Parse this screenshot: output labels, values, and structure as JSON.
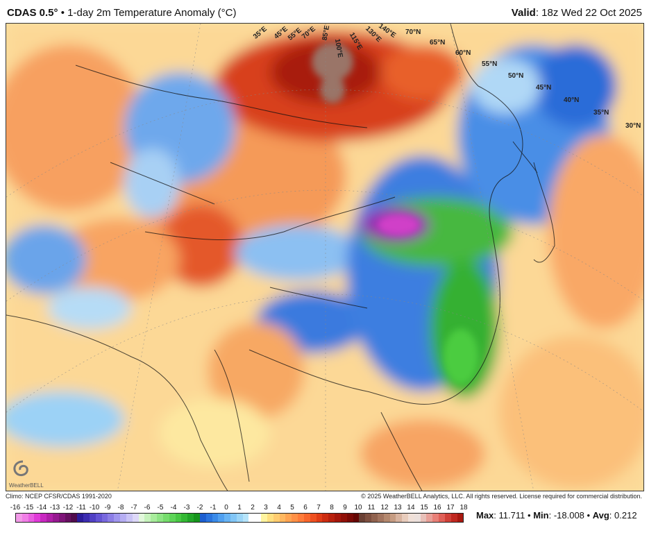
{
  "header": {
    "model": "CDAS 0.5°",
    "separator": "•",
    "product": "1-day 2m Temperature Anomaly (°C)",
    "valid_label": "Valid",
    "valid_time": "18z Wed 22 Oct 2025"
  },
  "map": {
    "lat_labels": [
      "70°N",
      "65°N",
      "60°N",
      "55°N",
      "50°N",
      "45°N",
      "40°N",
      "35°N",
      "30°N"
    ],
    "lon_labels": [
      "35°E",
      "45°E",
      "55°E",
      "70°E",
      "85°E",
      "100°E",
      "115°E",
      "130°E",
      "140°E"
    ],
    "logo_text": "WeatherBELL"
  },
  "footer": {
    "climo": "Climo: NCEP CFSR/CDAS 1991-2020",
    "copyright": "© 2025 WeatherBELL Analytics, LLC. All rights reserved. License required for commercial distribution."
  },
  "colorbar": {
    "tick_labels": [
      "-16",
      "-15",
      "-14",
      "-13",
      "-12",
      "-11",
      "-10",
      "-9",
      "-8",
      "-7",
      "-6",
      "-5",
      "-4",
      "-3",
      "-2",
      "-1",
      "0",
      "1",
      "2",
      "3",
      "4",
      "5",
      "6",
      "7",
      "8",
      "9",
      "10",
      "11",
      "12",
      "13",
      "14",
      "15",
      "16",
      "17",
      "18"
    ],
    "colors": [
      "#f29ae8",
      "#f07ee6",
      "#e85ee0",
      "#e03ad8",
      "#c828c0",
      "#b01ea8",
      "#961890",
      "#7e1478",
      "#661060",
      "#500c4c",
      "#2c1c9a",
      "#3c2cb0",
      "#5040c4",
      "#6454d4",
      "#7868de",
      "#8c7ee6",
      "#a096ee",
      "#b6aef2",
      "#cac4f6",
      "#ddd8f8",
      "#e2f8dc",
      "#c6f2bc",
      "#a8ec9c",
      "#8ee484",
      "#76dc6c",
      "#5ed458",
      "#48c844",
      "#34b834",
      "#22a628",
      "#16941c",
      "#1c5ed0",
      "#2a74de",
      "#3a8ae8",
      "#50a0f0",
      "#68b4f4",
      "#82c6f6",
      "#9cd6f8",
      "#b6e4fa",
      "#ffffff",
      "#ffffff",
      "#fff4a0",
      "#ffe080",
      "#ffcc70",
      "#ffb860",
      "#ffa452",
      "#ff9046",
      "#ff7c3a",
      "#f8662c",
      "#ee5020",
      "#e03c16",
      "#cc2c10",
      "#b8200c",
      "#a4160a",
      "#901008",
      "#7a0a06",
      "#640604",
      "#6a4034",
      "#7e5040",
      "#90624e",
      "#a2745e",
      "#b4886e",
      "#c69c82",
      "#d8b4a0",
      "#e8ccbc",
      "#f0e0d8",
      "#ece0dc",
      "#e8c0b8",
      "#e8a098",
      "#e88078",
      "#e06058",
      "#d04038",
      "#c02820",
      "#a81810"
    ],
    "tick_min": -16,
    "tick_max": 18
  },
  "stats": {
    "max_label": "Max",
    "max_value": "11.711",
    "min_label": "Min",
    "min_value": "-18.008",
    "avg_label": "Avg",
    "avg_value": "0.212",
    "sep": "•"
  }
}
